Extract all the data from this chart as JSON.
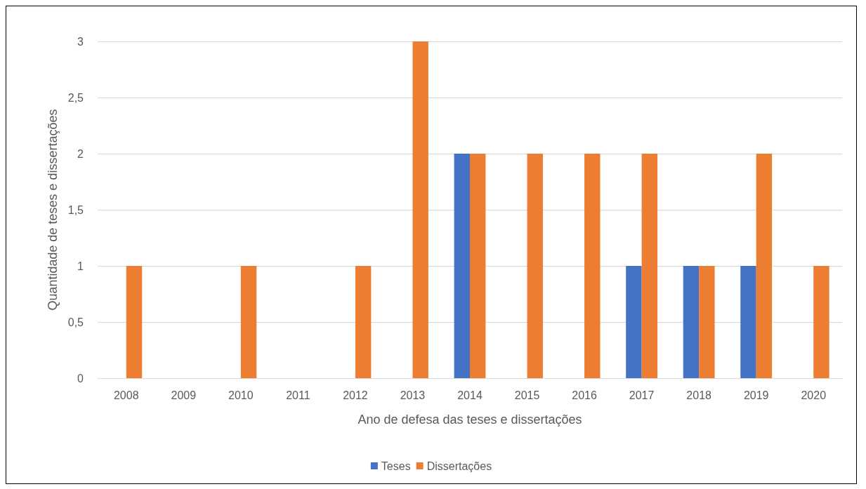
{
  "chart_data": {
    "type": "bar",
    "xlabel": "Ano de defesa das teses e dissertações",
    "ylabel": "Quantidade de teses e dissertações",
    "categories": [
      "2008",
      "2009",
      "2010",
      "2011",
      "2012",
      "2013",
      "2014",
      "2015",
      "2016",
      "2017",
      "2018",
      "2019",
      "2020"
    ],
    "series": [
      {
        "name": "Teses",
        "color": "#4472c4",
        "values": [
          0,
          0,
          0,
          0,
          0,
          0,
          2,
          0,
          0,
          1,
          1,
          1,
          0
        ]
      },
      {
        "name": "Dissertações",
        "color": "#ed7d31",
        "values": [
          1,
          0,
          1,
          0,
          1,
          3,
          2,
          2,
          2,
          2,
          1,
          2,
          1
        ]
      }
    ],
    "ylim": [
      0,
      3
    ],
    "yticks": [
      0,
      {
        "value": 0.5,
        "label": "0,5"
      },
      1,
      {
        "value": 1.5,
        "label": "1,5"
      },
      2,
      {
        "value": 2.5,
        "label": "2,5"
      },
      3
    ],
    "grid": "y",
    "legend": "bottom"
  }
}
